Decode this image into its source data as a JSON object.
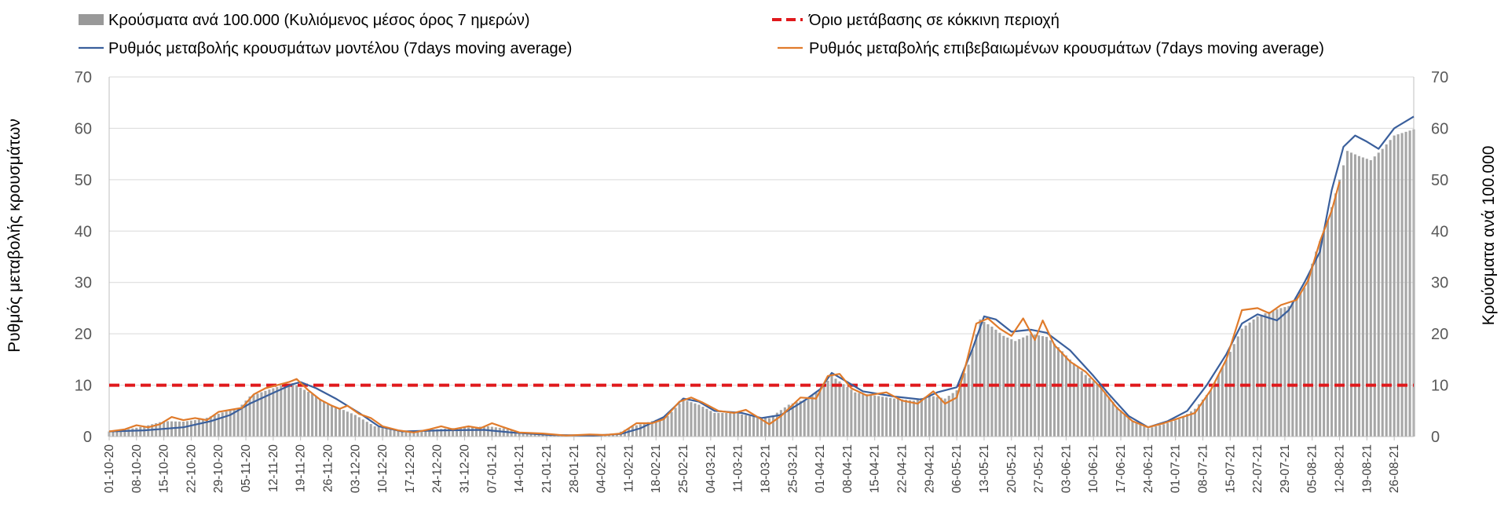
{
  "chart_data": {
    "type": "bar+line",
    "start_date": "2020-10-01",
    "end_date": "2021-08-31",
    "ylim_left": [
      0,
      70
    ],
    "ylim_right": [
      0,
      70
    ],
    "yticks": [
      "0",
      "10",
      "20",
      "30",
      "40",
      "50",
      "60",
      "70"
    ],
    "ylabel_left": "Ρυθμός μεταβολής κρουσμάτων",
    "ylabel_right": "Κρούσματα ανά 100.000",
    "threshold": 10,
    "grid": true,
    "legend_position": "top",
    "x_tick_labels": [
      "01-10-20",
      "08-10-20",
      "15-10-20",
      "22-10-20",
      "29-10-20",
      "05-11-20",
      "12-11-20",
      "19-11-20",
      "26-11-20",
      "03-12-20",
      "10-12-20",
      "17-12-20",
      "24-12-20",
      "31-12-20",
      "07-01-21",
      "14-01-21",
      "21-01-21",
      "28-01-21",
      "04-02-21",
      "11-02-21",
      "18-02-21",
      "25-02-21",
      "04-03-21",
      "11-03-21",
      "18-03-21",
      "25-03-21",
      "01-04-21",
      "08-04-21",
      "15-04-21",
      "22-04-21",
      "29-04-21",
      "06-05-21",
      "13-05-21",
      "20-05-21",
      "27-05-21",
      "03-06-21",
      "10-06-21",
      "17-06-21",
      "24-06-21",
      "01-07-21",
      "08-07-21",
      "15-07-21",
      "22-07-21",
      "29-07-21",
      "05-08-21",
      "12-08-21",
      "19-08-21",
      "26-08-21"
    ],
    "series": [
      {
        "name": "Κρούσματα ανά 100.000 (Κυλιόμενος μέσος όρος 7 ημερών)",
        "kind": "bar",
        "axis": "right",
        "color": "#a6a6a6",
        "legend_color": "#999999",
        "points": [
          [
            "2020-10-01",
            1.0
          ],
          [
            "2020-10-05",
            1.3
          ],
          [
            "2020-10-10",
            2.0
          ],
          [
            "2020-10-15",
            3.0
          ],
          [
            "2020-10-20",
            2.9
          ],
          [
            "2020-10-25",
            3.4
          ],
          [
            "2020-10-30",
            4.7
          ],
          [
            "2020-11-03",
            5.4
          ],
          [
            "2020-11-06",
            7.8
          ],
          [
            "2020-11-10",
            8.9
          ],
          [
            "2020-11-14",
            9.9
          ],
          [
            "2020-11-17",
            10.4
          ],
          [
            "2020-11-19",
            9.5
          ],
          [
            "2020-11-22",
            8.3
          ],
          [
            "2020-11-26",
            6.3
          ],
          [
            "2020-11-29",
            5.5
          ],
          [
            "2020-12-03",
            4.2
          ],
          [
            "2020-12-08",
            2.0
          ],
          [
            "2020-12-13",
            1.3
          ],
          [
            "2020-12-17",
            1.0
          ],
          [
            "2020-12-22",
            1.3
          ],
          [
            "2020-12-27",
            1.6
          ],
          [
            "2021-01-01",
            1.8
          ],
          [
            "2021-01-06",
            2.0
          ],
          [
            "2021-01-10",
            1.6
          ],
          [
            "2021-01-14",
            0.8
          ],
          [
            "2021-01-20",
            0.5
          ],
          [
            "2021-01-25",
            0.3
          ],
          [
            "2021-01-30",
            0.4
          ],
          [
            "2021-02-04",
            0.3
          ],
          [
            "2021-02-08",
            0.6
          ],
          [
            "2021-02-12",
            2.0
          ],
          [
            "2021-02-17",
            3.0
          ],
          [
            "2021-02-21",
            4.0
          ],
          [
            "2021-02-25",
            7.2
          ],
          [
            "2021-03-01",
            6.2
          ],
          [
            "2021-03-05",
            4.6
          ],
          [
            "2021-03-10",
            4.6
          ],
          [
            "2021-03-15",
            3.9
          ],
          [
            "2021-03-19",
            3.6
          ],
          [
            "2021-03-24",
            6.2
          ],
          [
            "2021-03-28",
            7.2
          ],
          [
            "2021-04-01",
            9.0
          ],
          [
            "2021-04-04",
            11.8
          ],
          [
            "2021-04-07",
            10.2
          ],
          [
            "2021-04-10",
            8.6
          ],
          [
            "2021-04-15",
            8.0
          ],
          [
            "2021-04-20",
            7.4
          ],
          [
            "2021-04-25",
            7.0
          ],
          [
            "2021-04-29",
            8.0
          ],
          [
            "2021-05-03",
            7.4
          ],
          [
            "2021-05-06",
            9.0
          ],
          [
            "2021-05-09",
            14.0
          ],
          [
            "2021-05-12",
            22.8
          ],
          [
            "2021-05-15",
            21.4
          ],
          [
            "2021-05-18",
            19.6
          ],
          [
            "2021-05-21",
            18.6
          ],
          [
            "2021-05-25",
            20.0
          ],
          [
            "2021-05-29",
            19.4
          ],
          [
            "2021-06-01",
            17.4
          ],
          [
            "2021-06-04",
            15.0
          ],
          [
            "2021-06-08",
            12.0
          ],
          [
            "2021-06-12",
            9.6
          ],
          [
            "2021-06-16",
            5.8
          ],
          [
            "2021-06-20",
            3.0
          ],
          [
            "2021-06-24",
            1.6
          ],
          [
            "2021-06-28",
            2.4
          ],
          [
            "2021-07-02",
            3.4
          ],
          [
            "2021-07-06",
            5.4
          ],
          [
            "2021-07-10",
            9.0
          ],
          [
            "2021-07-14",
            15.0
          ],
          [
            "2021-07-18",
            21.0
          ],
          [
            "2021-07-22",
            23.4
          ],
          [
            "2021-07-26",
            24.6
          ],
          [
            "2021-07-30",
            25.4
          ],
          [
            "2021-08-03",
            29.0
          ],
          [
            "2021-08-06",
            36.0
          ],
          [
            "2021-08-09",
            42.0
          ],
          [
            "2021-08-12",
            50.0
          ],
          [
            "2021-08-14",
            55.6
          ],
          [
            "2021-08-17",
            54.6
          ],
          [
            "2021-08-20",
            53.8
          ],
          [
            "2021-08-23",
            56.0
          ],
          [
            "2021-08-26",
            58.6
          ],
          [
            "2021-08-31",
            59.8
          ]
        ]
      },
      {
        "name": "Όριο μετάβασης σε κόκκινη περιοχή",
        "kind": "threshold",
        "axis": "left",
        "color": "#e0191c",
        "value": 10
      },
      {
        "name": "Ρυθμός μεταβολής κρουσμάτων μοντέλου (7days moving average)",
        "kind": "line",
        "axis": "left",
        "color": "#3a5f9c",
        "points": [
          [
            "2020-10-01",
            1.0
          ],
          [
            "2020-10-10",
            1.2
          ],
          [
            "2020-10-20",
            1.8
          ],
          [
            "2020-10-27",
            3.0
          ],
          [
            "2020-11-01",
            4.2
          ],
          [
            "2020-11-06",
            6.4
          ],
          [
            "2020-11-12",
            8.5
          ],
          [
            "2020-11-17",
            10.2
          ],
          [
            "2020-11-19",
            10.6
          ],
          [
            "2020-11-23",
            9.4
          ],
          [
            "2020-11-28",
            7.4
          ],
          [
            "2020-12-04",
            4.6
          ],
          [
            "2020-12-09",
            2.0
          ],
          [
            "2020-12-15",
            1.0
          ],
          [
            "2020-12-25",
            1.2
          ],
          [
            "2021-01-05",
            1.3
          ],
          [
            "2021-01-12",
            0.8
          ],
          [
            "2021-01-22",
            0.3
          ],
          [
            "2021-02-02",
            0.2
          ],
          [
            "2021-02-09",
            0.5
          ],
          [
            "2021-02-14",
            1.6
          ],
          [
            "2021-02-20",
            3.8
          ],
          [
            "2021-02-25",
            7.4
          ],
          [
            "2021-03-01",
            6.8
          ],
          [
            "2021-03-05",
            5.0
          ],
          [
            "2021-03-12",
            4.6
          ],
          [
            "2021-03-17",
            3.6
          ],
          [
            "2021-03-22",
            4.2
          ],
          [
            "2021-03-28",
            7.0
          ],
          [
            "2021-04-01",
            9.2
          ],
          [
            "2021-04-04",
            12.4
          ],
          [
            "2021-04-08",
            10.6
          ],
          [
            "2021-04-12",
            8.8
          ],
          [
            "2021-04-20",
            7.8
          ],
          [
            "2021-04-27",
            7.2
          ],
          [
            "2021-05-01",
            8.6
          ],
          [
            "2021-05-06",
            9.6
          ],
          [
            "2021-05-10",
            17.0
          ],
          [
            "2021-05-13",
            23.4
          ],
          [
            "2021-05-16",
            22.8
          ],
          [
            "2021-05-20",
            20.4
          ],
          [
            "2021-05-25",
            20.8
          ],
          [
            "2021-05-29",
            20.2
          ],
          [
            "2021-06-04",
            16.8
          ],
          [
            "2021-06-10",
            11.8
          ],
          [
            "2021-06-14",
            8.2
          ],
          [
            "2021-06-19",
            4.0
          ],
          [
            "2021-06-24",
            1.8
          ],
          [
            "2021-06-29",
            3.0
          ],
          [
            "2021-07-04",
            5.0
          ],
          [
            "2021-07-09",
            10.0
          ],
          [
            "2021-07-14",
            16.0
          ],
          [
            "2021-07-18",
            22.0
          ],
          [
            "2021-07-22",
            23.8
          ],
          [
            "2021-07-27",
            22.6
          ],
          [
            "2021-07-30",
            24.6
          ],
          [
            "2021-08-03",
            30.0
          ],
          [
            "2021-08-07",
            36.0
          ],
          [
            "2021-08-10",
            48.0
          ],
          [
            "2021-08-13",
            56.4
          ],
          [
            "2021-08-16",
            58.6
          ],
          [
            "2021-08-19",
            57.4
          ],
          [
            "2021-08-22",
            56.0
          ],
          [
            "2021-08-26",
            60.0
          ],
          [
            "2021-08-31",
            62.3
          ]
        ]
      },
      {
        "name": "Ρυθμός μεταβολής επιβεβαιωμένων κρουσμάτων (7days moving average)",
        "kind": "line",
        "axis": "left",
        "color": "#e07b2b",
        "points": [
          [
            "2020-10-01",
            1.0
          ],
          [
            "2020-10-05",
            1.4
          ],
          [
            "2020-10-08",
            2.2
          ],
          [
            "2020-10-11",
            1.8
          ],
          [
            "2020-10-14",
            2.4
          ],
          [
            "2020-10-17",
            3.8
          ],
          [
            "2020-10-20",
            3.2
          ],
          [
            "2020-10-23",
            3.6
          ],
          [
            "2020-10-26",
            3.2
          ],
          [
            "2020-10-29",
            4.8
          ],
          [
            "2020-11-01",
            5.2
          ],
          [
            "2020-11-04",
            5.6
          ],
          [
            "2020-11-07",
            8.2
          ],
          [
            "2020-11-10",
            9.4
          ],
          [
            "2020-11-13",
            10.0
          ],
          [
            "2020-11-16",
            10.6
          ],
          [
            "2020-11-18",
            11.2
          ],
          [
            "2020-11-21",
            9.0
          ],
          [
            "2020-11-24",
            7.2
          ],
          [
            "2020-11-27",
            6.0
          ],
          [
            "2020-11-29",
            5.4
          ],
          [
            "2020-12-01",
            6.0
          ],
          [
            "2020-12-04",
            4.4
          ],
          [
            "2020-12-07",
            3.6
          ],
          [
            "2020-12-10",
            2.0
          ],
          [
            "2020-12-14",
            1.2
          ],
          [
            "2020-12-18",
            0.8
          ],
          [
            "2020-12-22",
            1.4
          ],
          [
            "2020-12-25",
            2.0
          ],
          [
            "2020-12-28",
            1.4
          ],
          [
            "2021-01-01",
            2.0
          ],
          [
            "2021-01-04",
            1.6
          ],
          [
            "2021-01-07",
            2.6
          ],
          [
            "2021-01-10",
            1.8
          ],
          [
            "2021-01-14",
            0.8
          ],
          [
            "2021-01-20",
            0.6
          ],
          [
            "2021-01-26",
            0.2
          ],
          [
            "2021-02-01",
            0.4
          ],
          [
            "2021-02-05",
            0.3
          ],
          [
            "2021-02-09",
            0.6
          ],
          [
            "2021-02-13",
            2.6
          ],
          [
            "2021-02-17",
            2.6
          ],
          [
            "2021-02-20",
            3.4
          ],
          [
            "2021-02-24",
            6.8
          ],
          [
            "2021-02-27",
            7.6
          ],
          [
            "2021-03-02",
            6.6
          ],
          [
            "2021-03-06",
            5.0
          ],
          [
            "2021-03-10",
            4.6
          ],
          [
            "2021-03-13",
            5.2
          ],
          [
            "2021-03-16",
            3.8
          ],
          [
            "2021-03-19",
            2.4
          ],
          [
            "2021-03-22",
            4.0
          ],
          [
            "2021-03-27",
            7.6
          ],
          [
            "2021-03-31",
            7.4
          ],
          [
            "2021-04-03",
            11.8
          ],
          [
            "2021-04-06",
            12.2
          ],
          [
            "2021-04-09",
            9.4
          ],
          [
            "2021-04-13",
            8.0
          ],
          [
            "2021-04-18",
            8.6
          ],
          [
            "2021-04-22",
            7.0
          ],
          [
            "2021-04-26",
            6.4
          ],
          [
            "2021-04-30",
            8.8
          ],
          [
            "2021-05-03",
            6.4
          ],
          [
            "2021-05-06",
            7.6
          ],
          [
            "2021-05-08",
            13.0
          ],
          [
            "2021-05-11",
            22.0
          ],
          [
            "2021-05-14",
            23.0
          ],
          [
            "2021-05-17",
            21.0
          ],
          [
            "2021-05-20",
            19.6
          ],
          [
            "2021-05-23",
            23.0
          ],
          [
            "2021-05-26",
            18.8
          ],
          [
            "2021-05-28",
            22.6
          ],
          [
            "2021-05-31",
            17.8
          ],
          [
            "2021-06-04",
            14.6
          ],
          [
            "2021-06-08",
            12.6
          ],
          [
            "2021-06-12",
            9.4
          ],
          [
            "2021-06-16",
            5.6
          ],
          [
            "2021-06-20",
            3.0
          ],
          [
            "2021-06-24",
            1.8
          ],
          [
            "2021-06-28",
            2.6
          ],
          [
            "2021-07-02",
            3.6
          ],
          [
            "2021-07-06",
            4.6
          ],
          [
            "2021-07-10",
            9.0
          ],
          [
            "2021-07-14",
            15.0
          ],
          [
            "2021-07-18",
            24.6
          ],
          [
            "2021-07-22",
            25.0
          ],
          [
            "2021-07-25",
            24.0
          ],
          [
            "2021-07-28",
            25.6
          ],
          [
            "2021-08-01",
            26.6
          ],
          [
            "2021-08-04",
            30.4
          ],
          [
            "2021-08-07",
            38.0
          ],
          [
            "2021-08-10",
            44.0
          ],
          [
            "2021-08-12",
            49.6
          ]
        ]
      }
    ]
  }
}
